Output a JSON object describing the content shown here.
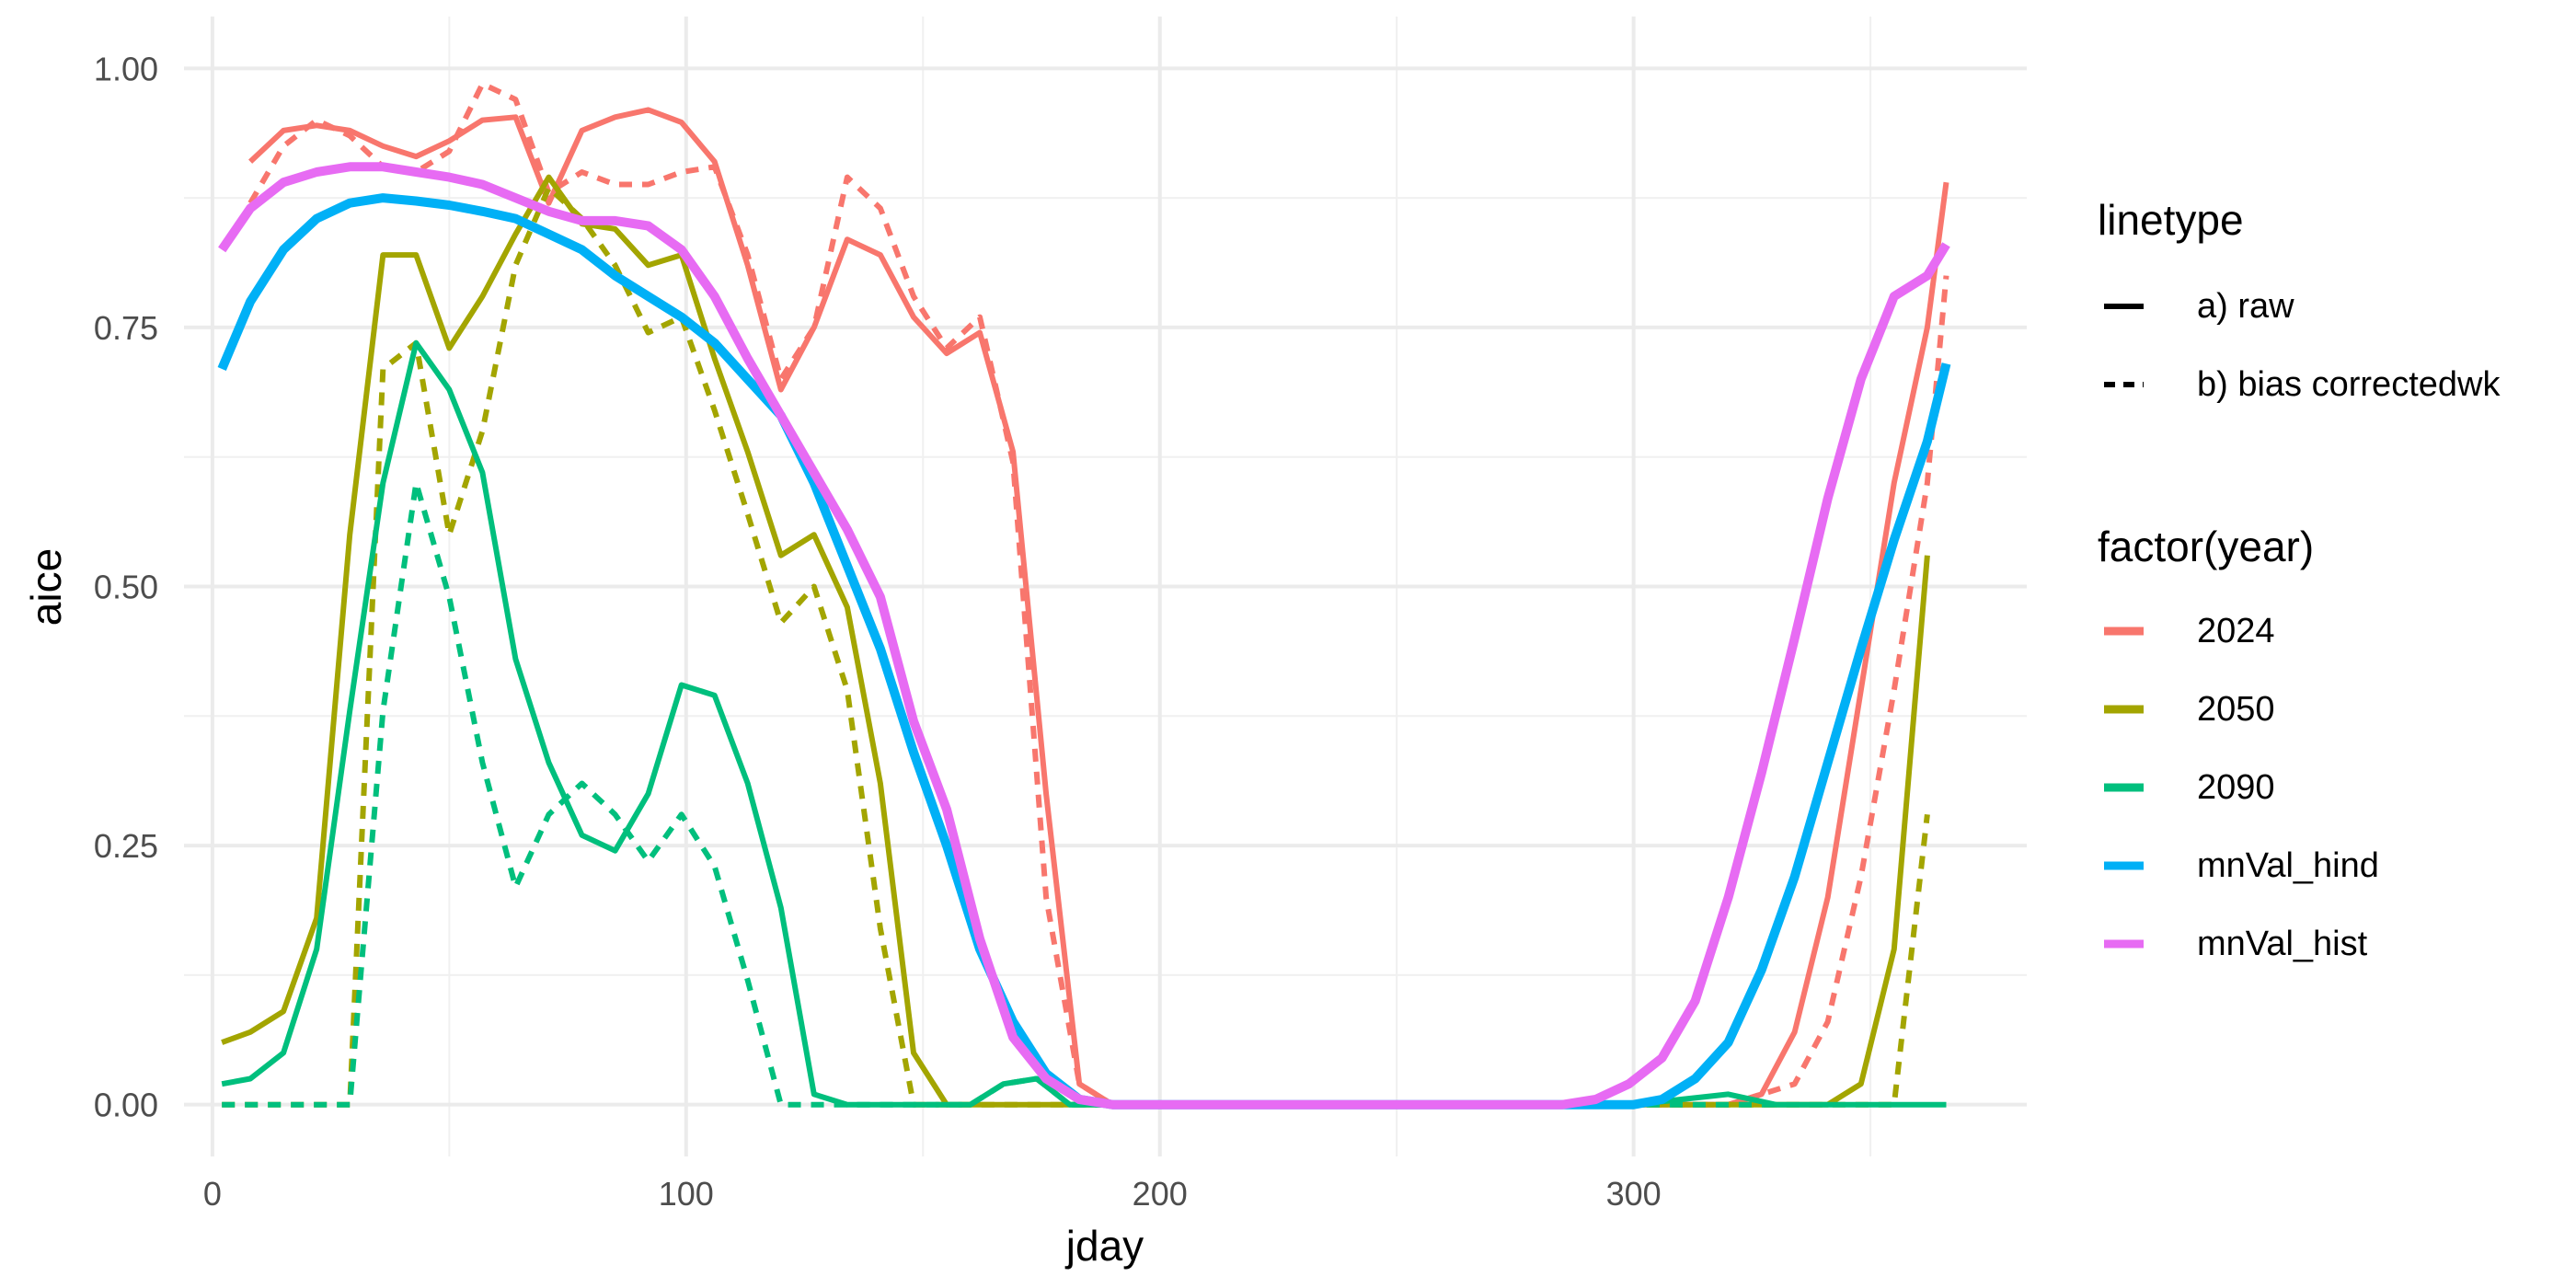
{
  "chart_data": {
    "type": "line",
    "xlabel": "jday",
    "ylabel": "aice",
    "xlim": [
      -6,
      383
    ],
    "ylim": [
      -0.05,
      1.05
    ],
    "x_ticks": [
      0,
      100,
      200,
      300
    ],
    "x_tick_labels": [
      "0",
      "100",
      "200",
      "300"
    ],
    "y_ticks": [
      0,
      0.25,
      0.5,
      0.75,
      1.0
    ],
    "y_tick_labels": [
      "0.00",
      "0.25",
      "0.50",
      "0.75",
      "1.00"
    ],
    "grid": true,
    "legend_position": "right",
    "legends": [
      {
        "title": "linetype",
        "entries": [
          {
            "label": "a) raw",
            "dash": "solid"
          },
          {
            "label": "b) bias correctedwk",
            "dash": "dashed"
          }
        ]
      },
      {
        "title": "factor(year)",
        "entries": [
          {
            "label": "2024",
            "color": "#F8766D"
          },
          {
            "label": "2050",
            "color": "#A3A500"
          },
          {
            "label": "2090",
            "color": "#00BF7D"
          },
          {
            "label": "mnVal_hind",
            "color": "#00B0F6"
          },
          {
            "label": "mnVal_hist",
            "color": "#E76BF3"
          }
        ]
      }
    ],
    "series": [
      {
        "name": "2024",
        "linetype": "a) raw",
        "color": "#F8766D",
        "width": "normal",
        "points": [
          [
            8,
            0.91
          ],
          [
            15,
            0.94
          ],
          [
            22,
            0.945
          ],
          [
            29,
            0.94
          ],
          [
            36,
            0.925
          ],
          [
            43,
            0.915
          ],
          [
            50,
            0.93
          ],
          [
            57,
            0.95
          ],
          [
            64,
            0.953
          ],
          [
            71,
            0.87
          ],
          [
            78,
            0.94
          ],
          [
            85,
            0.953
          ],
          [
            92,
            0.96
          ],
          [
            99,
            0.948
          ],
          [
            106,
            0.91
          ],
          [
            113,
            0.81
          ],
          [
            120,
            0.69
          ],
          [
            127,
            0.75
          ],
          [
            134,
            0.835
          ],
          [
            141,
            0.82
          ],
          [
            148,
            0.76
          ],
          [
            155,
            0.725
          ],
          [
            162,
            0.745
          ],
          [
            169,
            0.63
          ],
          [
            176,
            0.3
          ],
          [
            183,
            0.02
          ],
          [
            190,
            0.0
          ],
          [
            300,
            0.0
          ],
          [
            320,
            0.0
          ],
          [
            327,
            0.01
          ],
          [
            334,
            0.07
          ],
          [
            341,
            0.2
          ],
          [
            348,
            0.4
          ],
          [
            355,
            0.6
          ],
          [
            362,
            0.75
          ],
          [
            366,
            0.89
          ]
        ]
      },
      {
        "name": "2024",
        "linetype": "b) bias correctedwk",
        "color": "#F8766D",
        "width": "normal",
        "points": [
          [
            8,
            0.87
          ],
          [
            15,
            0.925
          ],
          [
            22,
            0.95
          ],
          [
            29,
            0.935
          ],
          [
            36,
            0.905
          ],
          [
            43,
            0.9
          ],
          [
            50,
            0.92
          ],
          [
            57,
            0.985
          ],
          [
            64,
            0.97
          ],
          [
            71,
            0.88
          ],
          [
            78,
            0.9
          ],
          [
            85,
            0.888
          ],
          [
            92,
            0.888
          ],
          [
            99,
            0.9
          ],
          [
            106,
            0.905
          ],
          [
            113,
            0.82
          ],
          [
            120,
            0.7
          ],
          [
            127,
            0.75
          ],
          [
            134,
            0.895
          ],
          [
            141,
            0.865
          ],
          [
            148,
            0.78
          ],
          [
            155,
            0.73
          ],
          [
            162,
            0.76
          ],
          [
            169,
            0.62
          ],
          [
            176,
            0.2
          ],
          [
            183,
            0.02
          ],
          [
            190,
            0.0
          ],
          [
            320,
            0.0
          ],
          [
            334,
            0.02
          ],
          [
            341,
            0.08
          ],
          [
            348,
            0.22
          ],
          [
            355,
            0.4
          ],
          [
            362,
            0.6
          ],
          [
            366,
            0.8
          ]
        ]
      },
      {
        "name": "2050",
        "linetype": "a) raw",
        "color": "#A3A500",
        "width": "normal",
        "points": [
          [
            2,
            0.06
          ],
          [
            8,
            0.07
          ],
          [
            15,
            0.09
          ],
          [
            22,
            0.18
          ],
          [
            29,
            0.55
          ],
          [
            36,
            0.82
          ],
          [
            43,
            0.82
          ],
          [
            50,
            0.73
          ],
          [
            57,
            0.78
          ],
          [
            64,
            0.84
          ],
          [
            71,
            0.895
          ],
          [
            78,
            0.85
          ],
          [
            85,
            0.845
          ],
          [
            92,
            0.81
          ],
          [
            99,
            0.82
          ],
          [
            106,
            0.72
          ],
          [
            113,
            0.63
          ],
          [
            120,
            0.53
          ],
          [
            127,
            0.55
          ],
          [
            134,
            0.48
          ],
          [
            141,
            0.31
          ],
          [
            148,
            0.05
          ],
          [
            155,
            0.0
          ],
          [
            160,
            0.0
          ],
          [
            300,
            0.0
          ],
          [
            327,
            0.0
          ],
          [
            341,
            0.0
          ],
          [
            348,
            0.02
          ],
          [
            355,
            0.15
          ],
          [
            362,
            0.53
          ]
        ]
      },
      {
        "name": "2050",
        "linetype": "b) bias correctedwk",
        "color": "#A3A500",
        "width": "normal",
        "points": [
          [
            2,
            0.0
          ],
          [
            15,
            0.0
          ],
          [
            29,
            0.0
          ],
          [
            36,
            0.71
          ],
          [
            43,
            0.735
          ],
          [
            50,
            0.55
          ],
          [
            57,
            0.65
          ],
          [
            64,
            0.81
          ],
          [
            71,
            0.885
          ],
          [
            78,
            0.855
          ],
          [
            85,
            0.81
          ],
          [
            92,
            0.745
          ],
          [
            99,
            0.76
          ],
          [
            106,
            0.67
          ],
          [
            113,
            0.57
          ],
          [
            120,
            0.465
          ],
          [
            127,
            0.5
          ],
          [
            134,
            0.4
          ],
          [
            141,
            0.17
          ],
          [
            148,
            0.0
          ],
          [
            160,
            0.0
          ],
          [
            340,
            0.0
          ],
          [
            355,
            0.0
          ],
          [
            362,
            0.28
          ]
        ]
      },
      {
        "name": "2090",
        "linetype": "a) raw",
        "color": "#00BF7D",
        "width": "normal",
        "points": [
          [
            2,
            0.02
          ],
          [
            8,
            0.025
          ],
          [
            15,
            0.05
          ],
          [
            22,
            0.15
          ],
          [
            29,
            0.38
          ],
          [
            36,
            0.6
          ],
          [
            43,
            0.735
          ],
          [
            50,
            0.69
          ],
          [
            57,
            0.61
          ],
          [
            64,
            0.43
          ],
          [
            71,
            0.33
          ],
          [
            78,
            0.26
          ],
          [
            85,
            0.245
          ],
          [
            92,
            0.3
          ],
          [
            99,
            0.405
          ],
          [
            106,
            0.395
          ],
          [
            113,
            0.31
          ],
          [
            120,
            0.19
          ],
          [
            127,
            0.01
          ],
          [
            134,
            0.0
          ],
          [
            160,
            0.0
          ],
          [
            167,
            0.02
          ],
          [
            174,
            0.025
          ],
          [
            181,
            0.0
          ],
          [
            300,
            0.0
          ],
          [
            320,
            0.01
          ],
          [
            330,
            0.0
          ],
          [
            366,
            0.0
          ]
        ]
      },
      {
        "name": "2090",
        "linetype": "b) bias correctedwk",
        "color": "#00BF7D",
        "width": "normal",
        "points": [
          [
            2,
            0.0
          ],
          [
            29,
            0.0
          ],
          [
            36,
            0.38
          ],
          [
            43,
            0.6
          ],
          [
            50,
            0.49
          ],
          [
            57,
            0.33
          ],
          [
            64,
            0.21
          ],
          [
            71,
            0.28
          ],
          [
            78,
            0.31
          ],
          [
            85,
            0.28
          ],
          [
            92,
            0.235
          ],
          [
            99,
            0.28
          ],
          [
            106,
            0.23
          ],
          [
            113,
            0.12
          ],
          [
            120,
            0.0
          ],
          [
            127,
            0.0
          ],
          [
            160,
            0.0
          ],
          [
            167,
            0.02
          ],
          [
            174,
            0.025
          ],
          [
            181,
            0.0
          ],
          [
            330,
            0.0
          ]
        ]
      },
      {
        "name": "mnVal_hind",
        "linetype": "a) raw",
        "color": "#00B0F6",
        "width": "thick",
        "points": [
          [
            2,
            0.71
          ],
          [
            8,
            0.775
          ],
          [
            15,
            0.825
          ],
          [
            22,
            0.855
          ],
          [
            29,
            0.87
          ],
          [
            36,
            0.875
          ],
          [
            43,
            0.872
          ],
          [
            50,
            0.868
          ],
          [
            57,
            0.862
          ],
          [
            64,
            0.855
          ],
          [
            71,
            0.84
          ],
          [
            78,
            0.825
          ],
          [
            85,
            0.8
          ],
          [
            92,
            0.78
          ],
          [
            99,
            0.76
          ],
          [
            106,
            0.735
          ],
          [
            113,
            0.7
          ],
          [
            120,
            0.665
          ],
          [
            127,
            0.6
          ],
          [
            134,
            0.52
          ],
          [
            141,
            0.44
          ],
          [
            148,
            0.34
          ],
          [
            155,
            0.25
          ],
          [
            162,
            0.15
          ],
          [
            169,
            0.08
          ],
          [
            176,
            0.03
          ],
          [
            183,
            0.005
          ],
          [
            190,
            0.0
          ],
          [
            300,
            0.0
          ],
          [
            306,
            0.005
          ],
          [
            313,
            0.025
          ],
          [
            320,
            0.06
          ],
          [
            327,
            0.13
          ],
          [
            334,
            0.22
          ],
          [
            341,
            0.33
          ],
          [
            348,
            0.44
          ],
          [
            355,
            0.545
          ],
          [
            362,
            0.64
          ],
          [
            366,
            0.715
          ]
        ]
      },
      {
        "name": "mnVal_hist",
        "linetype": "a) raw",
        "color": "#E76BF3",
        "width": "thick",
        "points": [
          [
            2,
            0.825
          ],
          [
            8,
            0.865
          ],
          [
            15,
            0.89
          ],
          [
            22,
            0.9
          ],
          [
            29,
            0.905
          ],
          [
            36,
            0.905
          ],
          [
            43,
            0.9
          ],
          [
            50,
            0.895
          ],
          [
            57,
            0.888
          ],
          [
            64,
            0.875
          ],
          [
            71,
            0.862
          ],
          [
            78,
            0.853
          ],
          [
            85,
            0.853
          ],
          [
            92,
            0.848
          ],
          [
            99,
            0.825
          ],
          [
            106,
            0.78
          ],
          [
            113,
            0.72
          ],
          [
            120,
            0.665
          ],
          [
            127,
            0.61
          ],
          [
            134,
            0.555
          ],
          [
            141,
            0.49
          ],
          [
            148,
            0.37
          ],
          [
            155,
            0.285
          ],
          [
            162,
            0.16
          ],
          [
            169,
            0.065
          ],
          [
            176,
            0.025
          ],
          [
            183,
            0.005
          ],
          [
            190,
            0.0
          ],
          [
            285,
            0.0
          ],
          [
            292,
            0.005
          ],
          [
            299,
            0.02
          ],
          [
            306,
            0.045
          ],
          [
            313,
            0.1
          ],
          [
            320,
            0.2
          ],
          [
            327,
            0.32
          ],
          [
            334,
            0.45
          ],
          [
            341,
            0.585
          ],
          [
            348,
            0.7
          ],
          [
            355,
            0.78
          ],
          [
            362,
            0.8
          ],
          [
            366,
            0.83
          ]
        ]
      }
    ]
  }
}
